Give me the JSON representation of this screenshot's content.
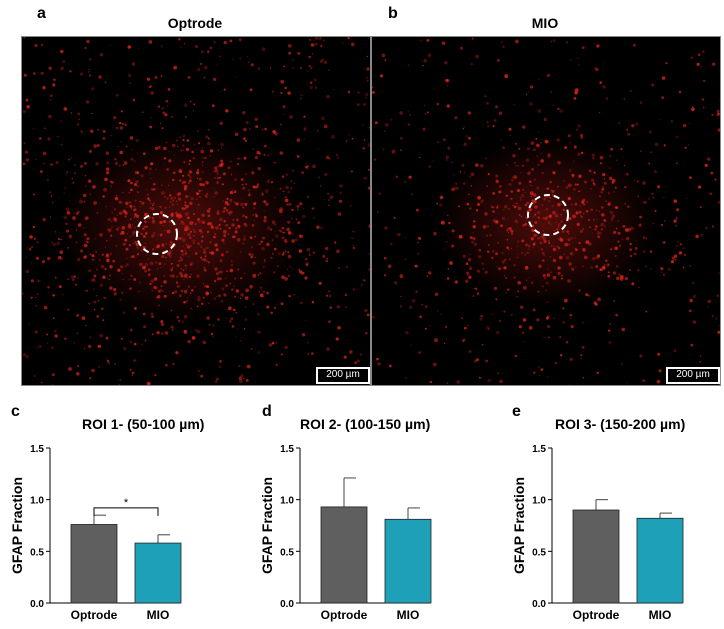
{
  "panels": {
    "a": {
      "letter": "a",
      "title": "Optrode",
      "scale_label": "200 µm"
    },
    "b": {
      "letter": "b",
      "title": "MIO",
      "scale_label": "200 µm"
    }
  },
  "colors": {
    "optrode": "#5f5f5f",
    "mio": "#1fa0b9",
    "signal": "#e0241c"
  },
  "chart_data": [
    {
      "panel": "c",
      "type": "bar",
      "title": "ROI 1- (50-100 µm)",
      "ylabel": "GFAP Fraction",
      "categories": [
        "Optrode",
        "MIO"
      ],
      "values": [
        0.76,
        0.58
      ],
      "errors": [
        0.09,
        0.08
      ],
      "ylim": [
        0.0,
        1.5
      ],
      "yticks": [
        "0.0",
        "0.5",
        "1.0",
        "1.5"
      ],
      "significance": "*"
    },
    {
      "panel": "d",
      "type": "bar",
      "title": "ROI 2- (100-150 µm)",
      "ylabel": "GFAP Fraction",
      "categories": [
        "Optrode",
        "MIO"
      ],
      "values": [
        0.93,
        0.81
      ],
      "errors": [
        0.28,
        0.11
      ],
      "ylim": [
        0.0,
        1.5
      ],
      "yticks": [
        "0.0",
        "0.5",
        "1.0",
        "1.5"
      ]
    },
    {
      "panel": "e",
      "type": "bar",
      "title": "ROI 3- (150-200 µm)",
      "ylabel": "GFAP Fraction",
      "categories": [
        "Optrode",
        "MIO"
      ],
      "values": [
        0.9,
        0.82
      ],
      "errors": [
        0.1,
        0.05
      ],
      "ylim": [
        0.0,
        1.5
      ],
      "yticks": [
        "0.0",
        "0.5",
        "1.0",
        "1.5"
      ]
    }
  ]
}
